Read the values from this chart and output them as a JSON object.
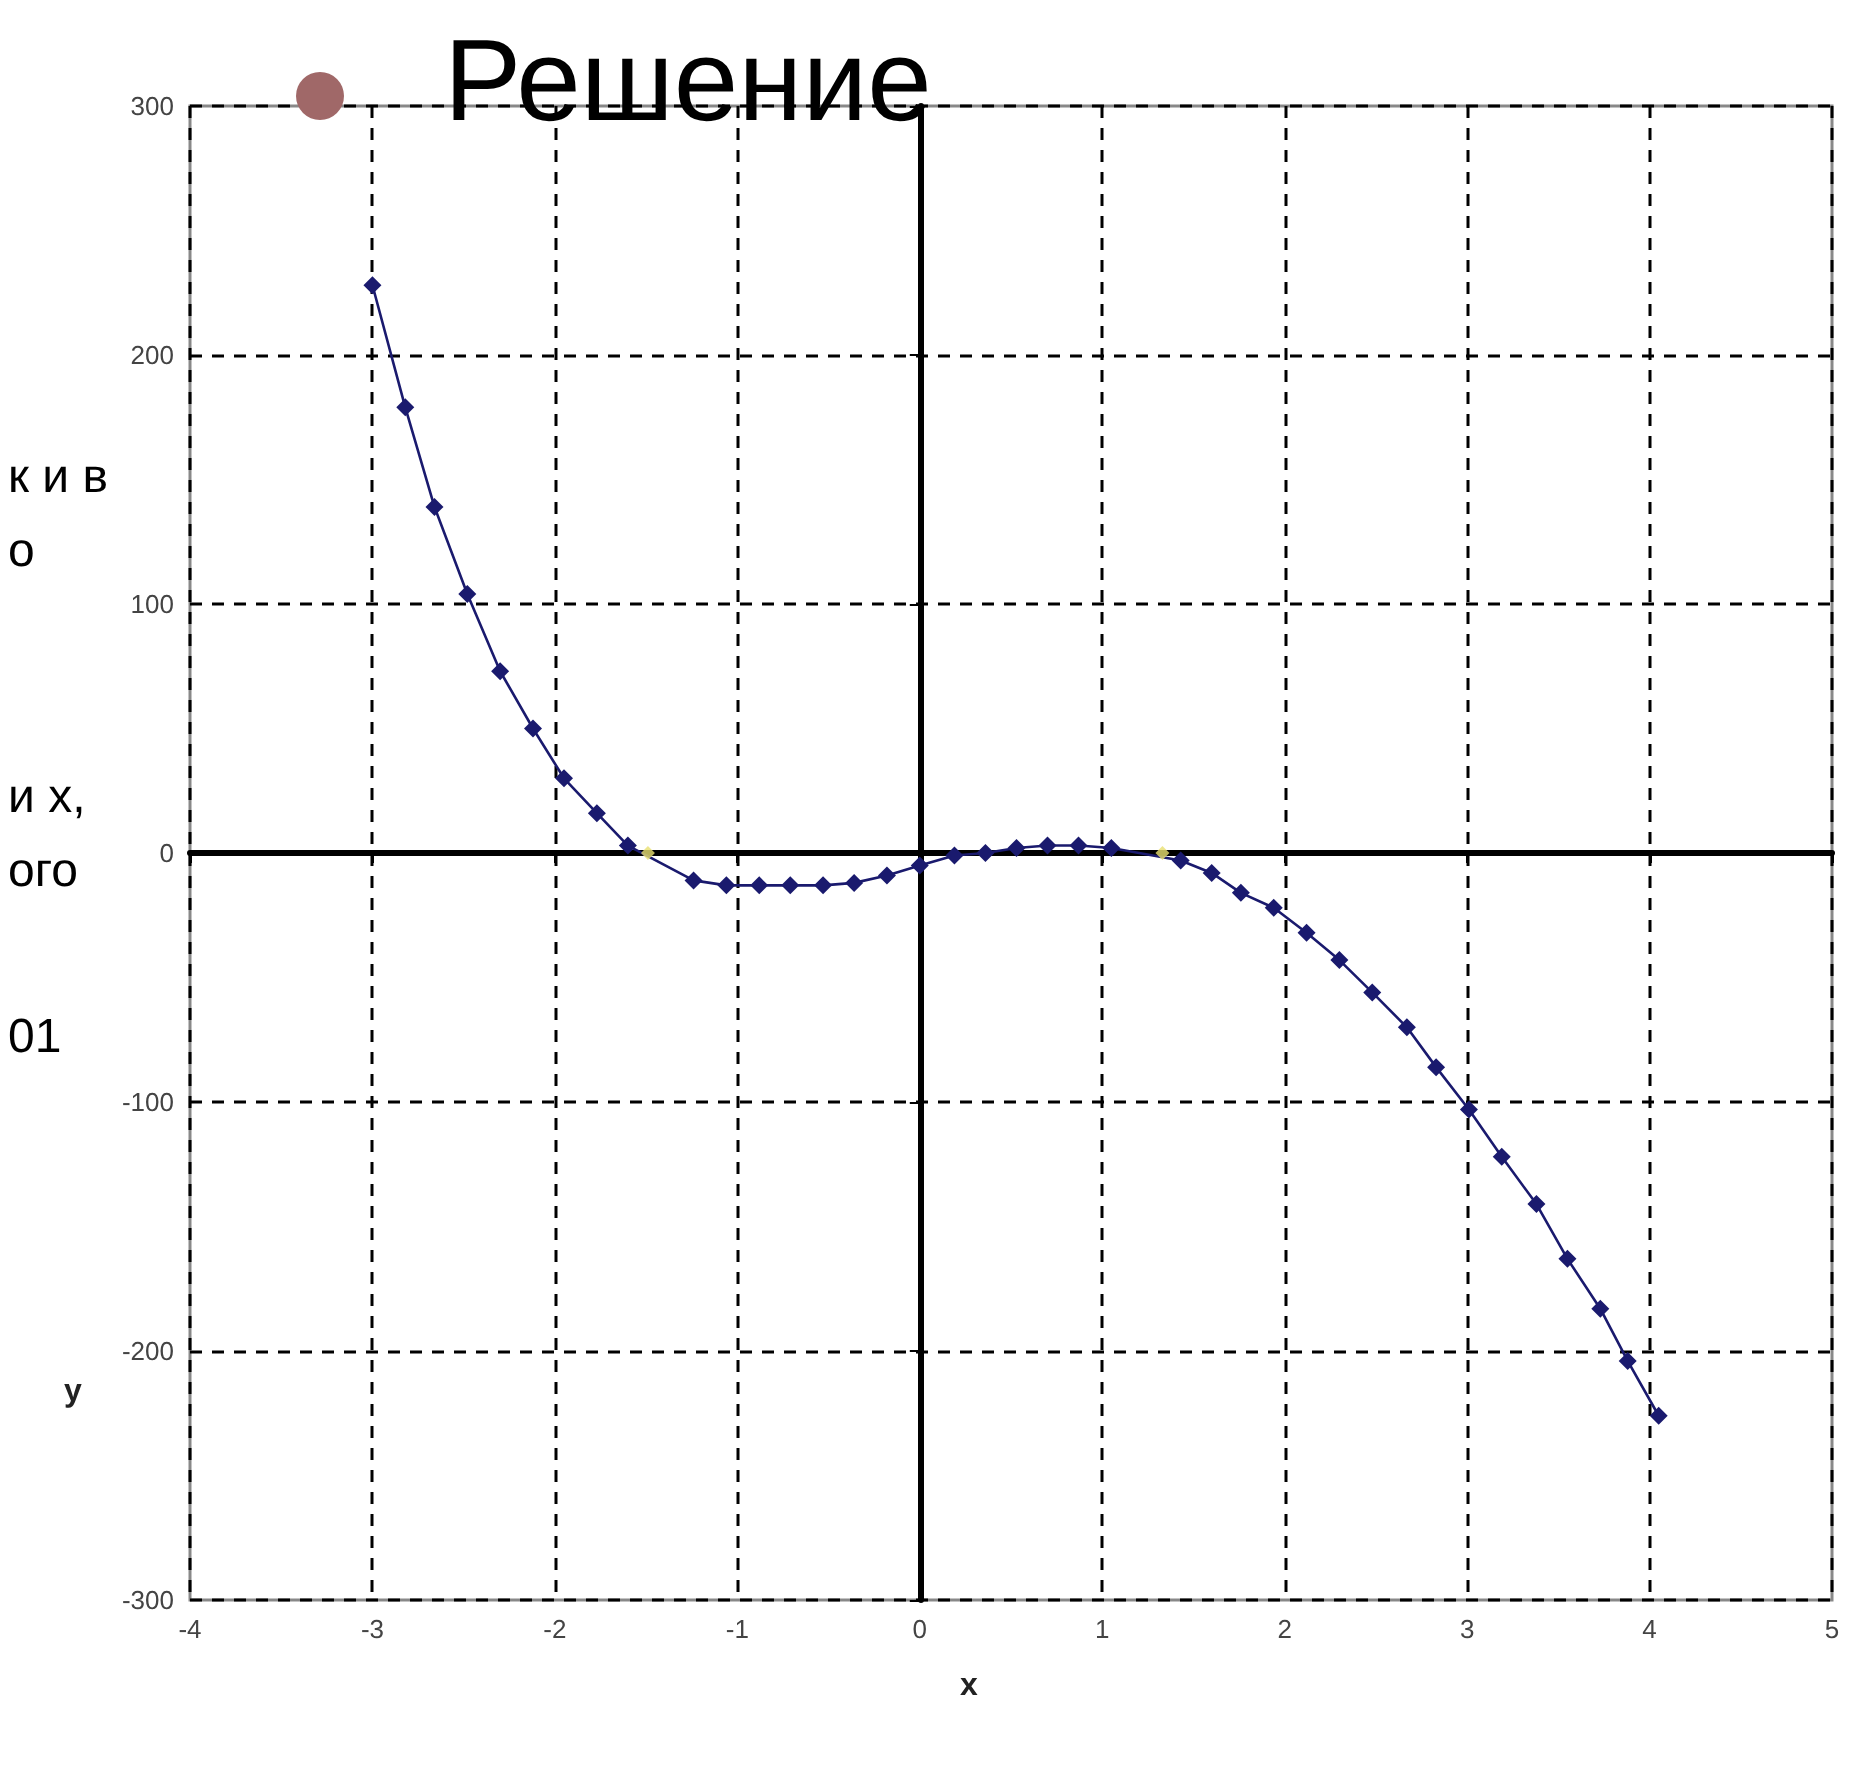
{
  "chart_data": {
    "type": "line",
    "title": "Решение",
    "xlabel": "x",
    "ylabel": "y",
    "annotations": [
      "к и в",
      "о",
      "и х,",
      "ого",
      "01"
    ],
    "xlim": [
      -4,
      5
    ],
    "xticks": [
      -4,
      -3,
      -2,
      -1,
      0,
      1,
      2,
      3,
      4,
      5
    ],
    "ylim": [
      -300,
      300
    ],
    "yticks": [
      -300,
      -200,
      -100,
      0,
      100,
      200,
      300
    ],
    "grid": true,
    "marker": "diamond",
    "line_style": "solid",
    "series": [
      {
        "color": "#1a1a6e",
        "x": [
          -3,
          -2.82,
          -2.66,
          -2.48,
          -2.3,
          -2.12,
          -1.95,
          -1.77,
          -1.6,
          -1.24,
          -1.06,
          -0.88,
          -0.71,
          -0.53,
          -0.36,
          -0.18,
          0,
          0.19,
          0.36,
          0.53,
          0.7,
          0.87,
          1.05,
          1.43,
          1.6,
          1.76,
          1.94,
          2.12,
          2.3,
          2.48,
          2.67,
          2.83,
          3.01,
          3.19,
          3.38,
          3.55,
          3.73,
          3.88,
          4.05
        ],
        "values": [
          228,
          179,
          139,
          104,
          73,
          50,
          30,
          16,
          3,
          -11,
          -13,
          -13,
          -13,
          -13,
          -12,
          -9,
          -5,
          -1,
          0,
          2,
          3,
          3,
          2,
          -3,
          -8,
          -16,
          -22,
          -32,
          -43,
          -56,
          -70,
          -86,
          -103,
          -122,
          -141,
          -163,
          -183,
          -204,
          -226
        ]
      },
      {
        "type": "scatter",
        "color": "#e8e070",
        "x": [
          -1.49,
          1.33
        ],
        "values": [
          0,
          0
        ]
      }
    ]
  }
}
